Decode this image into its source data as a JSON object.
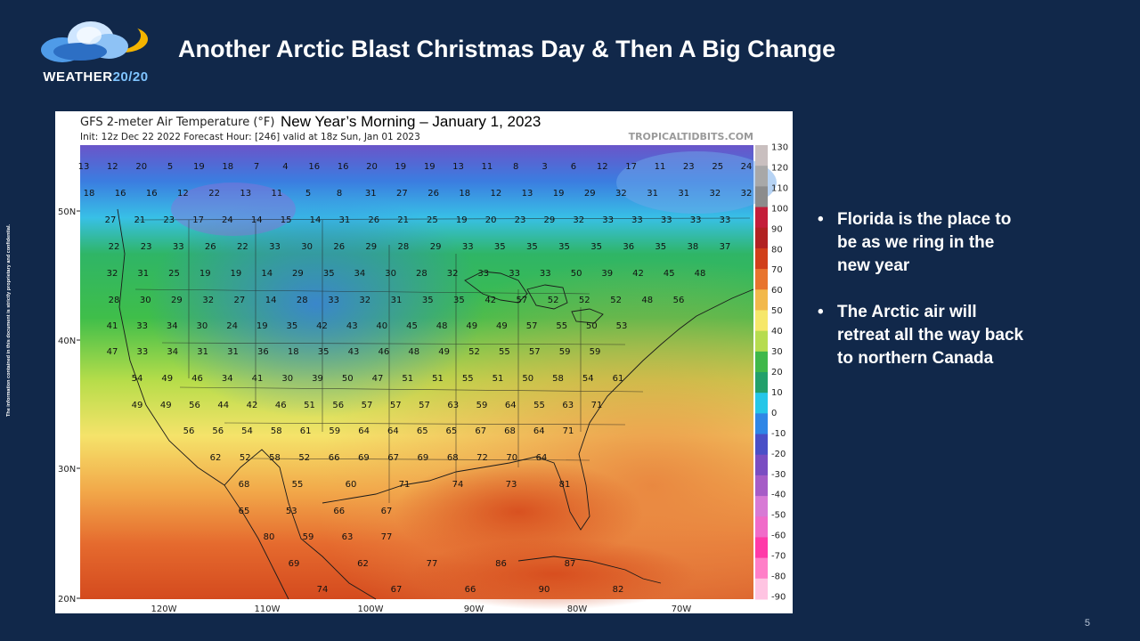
{
  "slide": {
    "title": "Another Arctic Blast Christmas Day & Then A Big Change",
    "page_number": "5",
    "confidential_note": "The information contained in this document is strictly proprietary and confidential.",
    "background_color": "#11284a"
  },
  "logo": {
    "name_main": "WEATHER",
    "name_accent": "20/20",
    "icon": "cloud-sun-logo-icon"
  },
  "map": {
    "model_title": "GFS 2-meter Air Temperature (°F)",
    "headline": "New Year’s Morning – January 1, 2023",
    "init_line": "Init: 12z Dec 22 2022   Forecast Hour: [246]   valid at 18z Sun, Jan 01 2023",
    "source": "TROPICALTIDBITS.COM",
    "lat_labels": [
      "50N",
      "40N",
      "30N",
      "20N"
    ],
    "lon_labels": [
      "120W",
      "110W",
      "100W",
      "90W",
      "80W",
      "70W"
    ],
    "colorbar_ticks": [
      "130",
      "120",
      "110",
      "100",
      "90",
      "80",
      "70",
      "60",
      "50",
      "40",
      "30",
      "20",
      "10",
      "0",
      "-10",
      "-20",
      "-30",
      "-40",
      "-50",
      "-60",
      "-70",
      "-80",
      "-90"
    ],
    "colorbar_colors": [
      "#c9bfbf",
      "#a8a8a8",
      "#8c8c8c",
      "#c41e3a",
      "#b22222",
      "#d13f1a",
      "#e8742e",
      "#f2b84b",
      "#f6e76a",
      "#b6dc4f",
      "#3fb84a",
      "#22a06b",
      "#25c6e8",
      "#2f86e6",
      "#4a4fc7",
      "#7a4dc2",
      "#a65cc7",
      "#d77ad5",
      "#f06bc9",
      "#ff3aa8",
      "#ff7fc8",
      "#ffc4e2"
    ],
    "temp_rows": [
      [
        "13",
        "12",
        "20",
        "5",
        "19",
        "18",
        "7",
        "4",
        "16",
        "16",
        "20",
        "19",
        "19",
        "13",
        "11",
        "8",
        "3",
        "6",
        "12",
        "17",
        "11",
        "23",
        "25",
        "24"
      ],
      [
        "18",
        "16",
        "16",
        "12",
        "22",
        "13",
        "11",
        "5",
        "8",
        "31",
        "27",
        "26",
        "18",
        "12",
        "13",
        "19",
        "29",
        "32",
        "31",
        "31",
        "32",
        "32"
      ],
      [
        "27",
        "21",
        "23",
        "17",
        "24",
        "14",
        "15",
        "14",
        "31",
        "26",
        "21",
        "25",
        "19",
        "20",
        "23",
        "29",
        "32",
        "33",
        "33",
        "33",
        "33",
        "33"
      ],
      [
        "22",
        "23",
        "33",
        "26",
        "22",
        "33",
        "30",
        "26",
        "29",
        "28",
        "29",
        "33",
        "35",
        "35",
        "35",
        "35",
        "36",
        "35",
        "38",
        "37"
      ],
      [
        "32",
        "31",
        "25",
        "19",
        "19",
        "14",
        "29",
        "35",
        "34",
        "30",
        "28",
        "32",
        "33",
        "33",
        "33",
        "50",
        "39",
        "42",
        "45",
        "48"
      ],
      [
        "28",
        "30",
        "29",
        "32",
        "27",
        "14",
        "28",
        "33",
        "32",
        "31",
        "35",
        "35",
        "42",
        "57",
        "52",
        "52",
        "52",
        "48",
        "56"
      ],
      [
        "41",
        "33",
        "34",
        "30",
        "24",
        "19",
        "35",
        "42",
        "43",
        "40",
        "45",
        "48",
        "49",
        "49",
        "57",
        "55",
        "50",
        "53"
      ],
      [
        "47",
        "33",
        "34",
        "31",
        "31",
        "36",
        "18",
        "35",
        "43",
        "46",
        "48",
        "49",
        "52",
        "55",
        "57",
        "59",
        "59"
      ],
      [
        "54",
        "49",
        "46",
        "34",
        "41",
        "30",
        "39",
        "50",
        "47",
        "51",
        "51",
        "55",
        "51",
        "50",
        "58",
        "54",
        "61"
      ],
      [
        "49",
        "49",
        "56",
        "44",
        "42",
        "46",
        "51",
        "56",
        "57",
        "57",
        "57",
        "63",
        "59",
        "64",
        "55",
        "63",
        "71"
      ],
      [
        "56",
        "56",
        "54",
        "58",
        "61",
        "59",
        "64",
        "64",
        "65",
        "65",
        "67",
        "68",
        "64",
        "71"
      ],
      [
        "62",
        "52",
        "58",
        "52",
        "66",
        "69",
        "67",
        "69",
        "68",
        "72",
        "70",
        "64"
      ],
      [
        "68",
        "55",
        "60",
        "71",
        "74",
        "73",
        "81"
      ],
      [
        "65",
        "53",
        "66",
        "67"
      ],
      [
        "80",
        "59",
        "63",
        "77"
      ],
      [
        "69",
        "62",
        "77",
        "86",
        "87"
      ],
      [
        "74",
        "67",
        "66",
        "90",
        "82"
      ]
    ]
  },
  "bullets": [
    "Florida is the place to be as we ring in the new year",
    "The Arctic air will retreat all the way back to northern Canada"
  ]
}
